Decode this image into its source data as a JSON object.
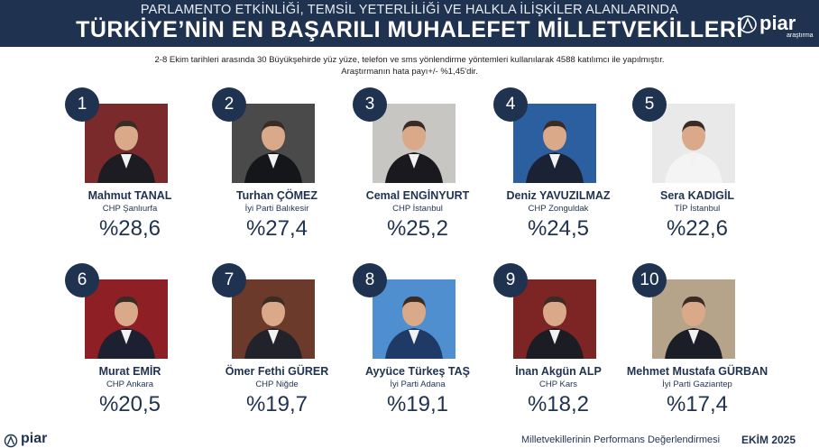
{
  "header": {
    "subtitle": "PARLAMENTO ETKİNLİĞİ, TEMSİL YETERLİLİĞİ VE HALKLA İLİŞKİLER ALANLARINDA",
    "title": "TÜRKİYE’NİN EN BAŞARILI MUHALEFET MİLLETVEKİLLERİ",
    "logo": "piar",
    "logo_small": "araştırma"
  },
  "method": {
    "line1": "2-8 Ekim tarihleri arasında 30 Büyükşehirde yüz yüze, telefon ve sms yönlendirme yöntemleri kullanılarak 4588 katılımcı ile yapılmıştır.",
    "line2": "Araştırmanın hata payı+/- %1,45'dir."
  },
  "deputies": [
    {
      "rank": "1",
      "name": "Mahmut TANAL",
      "party": "CHP Şanlıurfa",
      "pct": "%28,6",
      "bg": "#7a2a2a",
      "suit": "#1c1c22"
    },
    {
      "rank": "2",
      "name": "Turhan ÇÖMEZ",
      "party": "İyi Parti Balıkesir",
      "pct": "%27,4",
      "bg": "#4a4a4a",
      "suit": "#15161a"
    },
    {
      "rank": "3",
      "name": "Cemal ENGİNYURT",
      "party": "CHP İstanbul",
      "pct": "%25,2",
      "bg": "#c8c6c2",
      "suit": "#1a1a1e"
    },
    {
      "rank": "4",
      "name": "Deniz YAVUZILMAZ",
      "party": "CHP Zonguldak",
      "pct": "%24,5",
      "bg": "#2b5fa0",
      "suit": "#1a2233"
    },
    {
      "rank": "5",
      "name": "Sera KADIGİL",
      "party": "TİP İstanbul",
      "pct": "%22,6",
      "bg": "#e9e9ea",
      "suit": "#f4f4f4"
    },
    {
      "rank": "6",
      "name": "Murat EMİR",
      "party": "CHP Ankara",
      "pct": "%20,5",
      "bg": "#8e1f24",
      "suit": "#1c2030"
    },
    {
      "rank": "7",
      "name": "Ömer Fethi GÜRER",
      "party": "CHP Niğde",
      "pct": "%19,7",
      "bg": "#6b3a2a",
      "suit": "#22232a"
    },
    {
      "rank": "8",
      "name": "Ayyüce Türkeş TAŞ",
      "party": "İyi Parti Adana",
      "pct": "%19,1",
      "bg": "#4f8fcf",
      "suit": "#1f3a66"
    },
    {
      "rank": "9",
      "name": "İnan Akgün ALP",
      "party": "CHP Kars",
      "pct": "%18,2",
      "bg": "#7d2424",
      "suit": "#1b1c24"
    },
    {
      "rank": "10",
      "name": "Mehmet Mustafa GÜRBAN",
      "party": "İyi Parti Gaziantep",
      "pct": "%17,4",
      "bg": "#b6a48a",
      "suit": "#1b1d27"
    }
  ],
  "footer": {
    "logo": "piar",
    "text": "Milletvekillerinin Performans Değerlendirmesi",
    "date": "EKİM 2025"
  }
}
